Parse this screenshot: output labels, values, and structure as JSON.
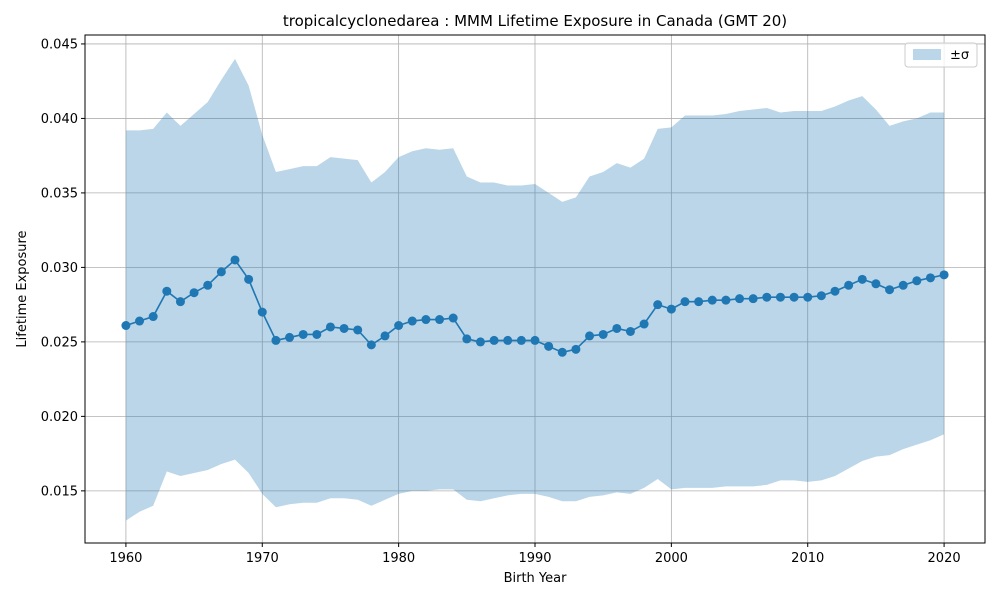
{
  "chart_data": {
    "type": "line",
    "title": "tropicalcyclonedarea : MMM Lifetime Exposure in Canada (GMT 20)",
    "xlabel": "Birth Year",
    "ylabel": "Lifetime Exposure",
    "xlim": [
      1957,
      2023
    ],
    "ylim": [
      0.0115,
      0.0456
    ],
    "xticks": [
      1960,
      1970,
      1980,
      1990,
      2000,
      2010,
      2020
    ],
    "xtick_labels": [
      "1960",
      "1970",
      "1980",
      "1990",
      "2000",
      "2010",
      "2020"
    ],
    "yticks": [
      0.015,
      0.02,
      0.025,
      0.03,
      0.035,
      0.04,
      0.045
    ],
    "ytick_labels": [
      "0.015",
      "0.020",
      "0.025",
      "0.030",
      "0.035",
      "0.040",
      "0.045"
    ],
    "grid": true,
    "legend": {
      "placement": "top-right",
      "entries": [
        "±σ"
      ]
    },
    "colors": {
      "line": "#1f77b4",
      "band": "#1f77b4",
      "band_opacity": 0.3,
      "grid": "#b0b0b0"
    },
    "x": [
      1960,
      1961,
      1962,
      1963,
      1964,
      1965,
      1966,
      1967,
      1968,
      1969,
      1970,
      1971,
      1972,
      1973,
      1974,
      1975,
      1976,
      1977,
      1978,
      1979,
      1980,
      1981,
      1982,
      1983,
      1984,
      1985,
      1986,
      1987,
      1988,
      1989,
      1990,
      1991,
      1992,
      1993,
      1994,
      1995,
      1996,
      1997,
      1998,
      1999,
      2000,
      2001,
      2002,
      2003,
      2004,
      2005,
      2006,
      2007,
      2008,
      2009,
      2010,
      2011,
      2012,
      2013,
      2014,
      2015,
      2016,
      2017,
      2018,
      2019,
      2020
    ],
    "series": [
      {
        "values": [
          0.0261,
          0.0264,
          0.0267,
          0.0284,
          0.0277,
          0.0283,
          0.0288,
          0.0297,
          0.0305,
          0.0292,
          0.027,
          0.0251,
          0.0253,
          0.0255,
          0.0255,
          0.026,
          0.0259,
          0.0258,
          0.0248,
          0.0254,
          0.0261,
          0.0264,
          0.0265,
          0.0265,
          0.0266,
          0.0252,
          0.025,
          0.0251,
          0.0251,
          0.0251,
          0.0251,
          0.0247,
          0.0243,
          0.0245,
          0.0254,
          0.0255,
          0.0259,
          0.0257,
          0.0262,
          0.0275,
          0.0272,
          0.0277,
          0.0277,
          0.0278,
          0.0278,
          0.0279,
          0.0279,
          0.028,
          0.028,
          0.028,
          0.028,
          0.0281,
          0.0284,
          0.0288,
          0.0292,
          0.0289,
          0.0285,
          0.0288,
          0.0291,
          0.0293,
          0.0295
        ],
        "upper": [
          0.0392,
          0.0392,
          0.0393,
          0.0404,
          0.0395,
          0.0403,
          0.0411,
          0.0426,
          0.044,
          0.0422,
          0.0389,
          0.0364,
          0.0366,
          0.0368,
          0.0368,
          0.0374,
          0.0373,
          0.0372,
          0.0357,
          0.0364,
          0.0374,
          0.0378,
          0.038,
          0.0379,
          0.038,
          0.0361,
          0.0357,
          0.0357,
          0.0355,
          0.0355,
          0.0356,
          0.035,
          0.0344,
          0.0347,
          0.0361,
          0.0364,
          0.037,
          0.0367,
          0.0373,
          0.0393,
          0.0394,
          0.0402,
          0.0402,
          0.0402,
          0.0403,
          0.0405,
          0.0406,
          0.0407,
          0.0404,
          0.0405,
          0.0405,
          0.0405,
          0.0408,
          0.0412,
          0.0415,
          0.0406,
          0.0395,
          0.0398,
          0.04,
          0.0404,
          0.0404
        ],
        "lower": [
          0.013,
          0.0136,
          0.014,
          0.0163,
          0.016,
          0.0162,
          0.0164,
          0.0168,
          0.0171,
          0.0162,
          0.0148,
          0.0139,
          0.0141,
          0.0142,
          0.0142,
          0.0145,
          0.0145,
          0.0144,
          0.014,
          0.0144,
          0.0148,
          0.015,
          0.015,
          0.0151,
          0.0151,
          0.0144,
          0.0143,
          0.0145,
          0.0147,
          0.0148,
          0.0148,
          0.0146,
          0.0143,
          0.0143,
          0.0146,
          0.0147,
          0.0149,
          0.0148,
          0.0152,
          0.0158,
          0.0151,
          0.0152,
          0.0152,
          0.0152,
          0.0153,
          0.0153,
          0.0153,
          0.0154,
          0.0157,
          0.0157,
          0.0156,
          0.0157,
          0.016,
          0.0165,
          0.017,
          0.0173,
          0.0174,
          0.0178,
          0.0181,
          0.0184,
          0.0188
        ]
      }
    ]
  }
}
